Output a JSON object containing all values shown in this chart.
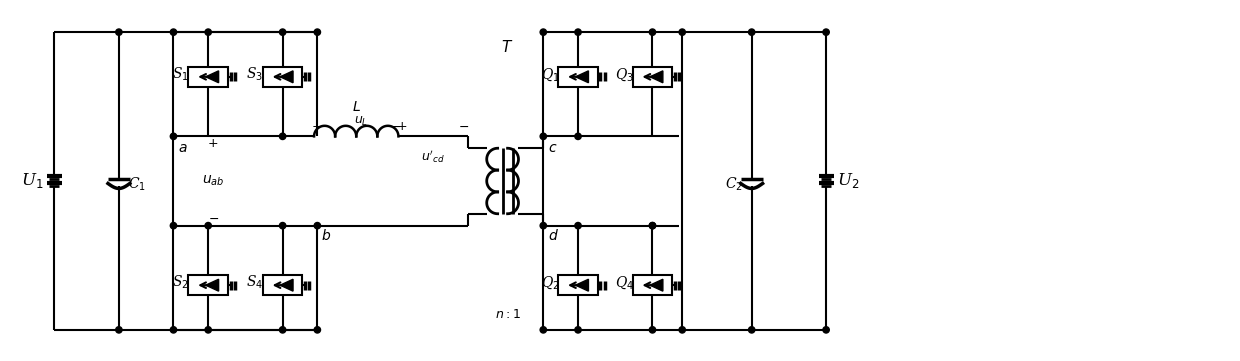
{
  "bg": "#ffffff",
  "lc": "#000000",
  "lw": 1.5,
  "fig_w": 12.4,
  "fig_h": 3.61,
  "dpi": 100,
  "xlim": [
    0,
    124
  ],
  "ylim": [
    0,
    36.1
  ]
}
